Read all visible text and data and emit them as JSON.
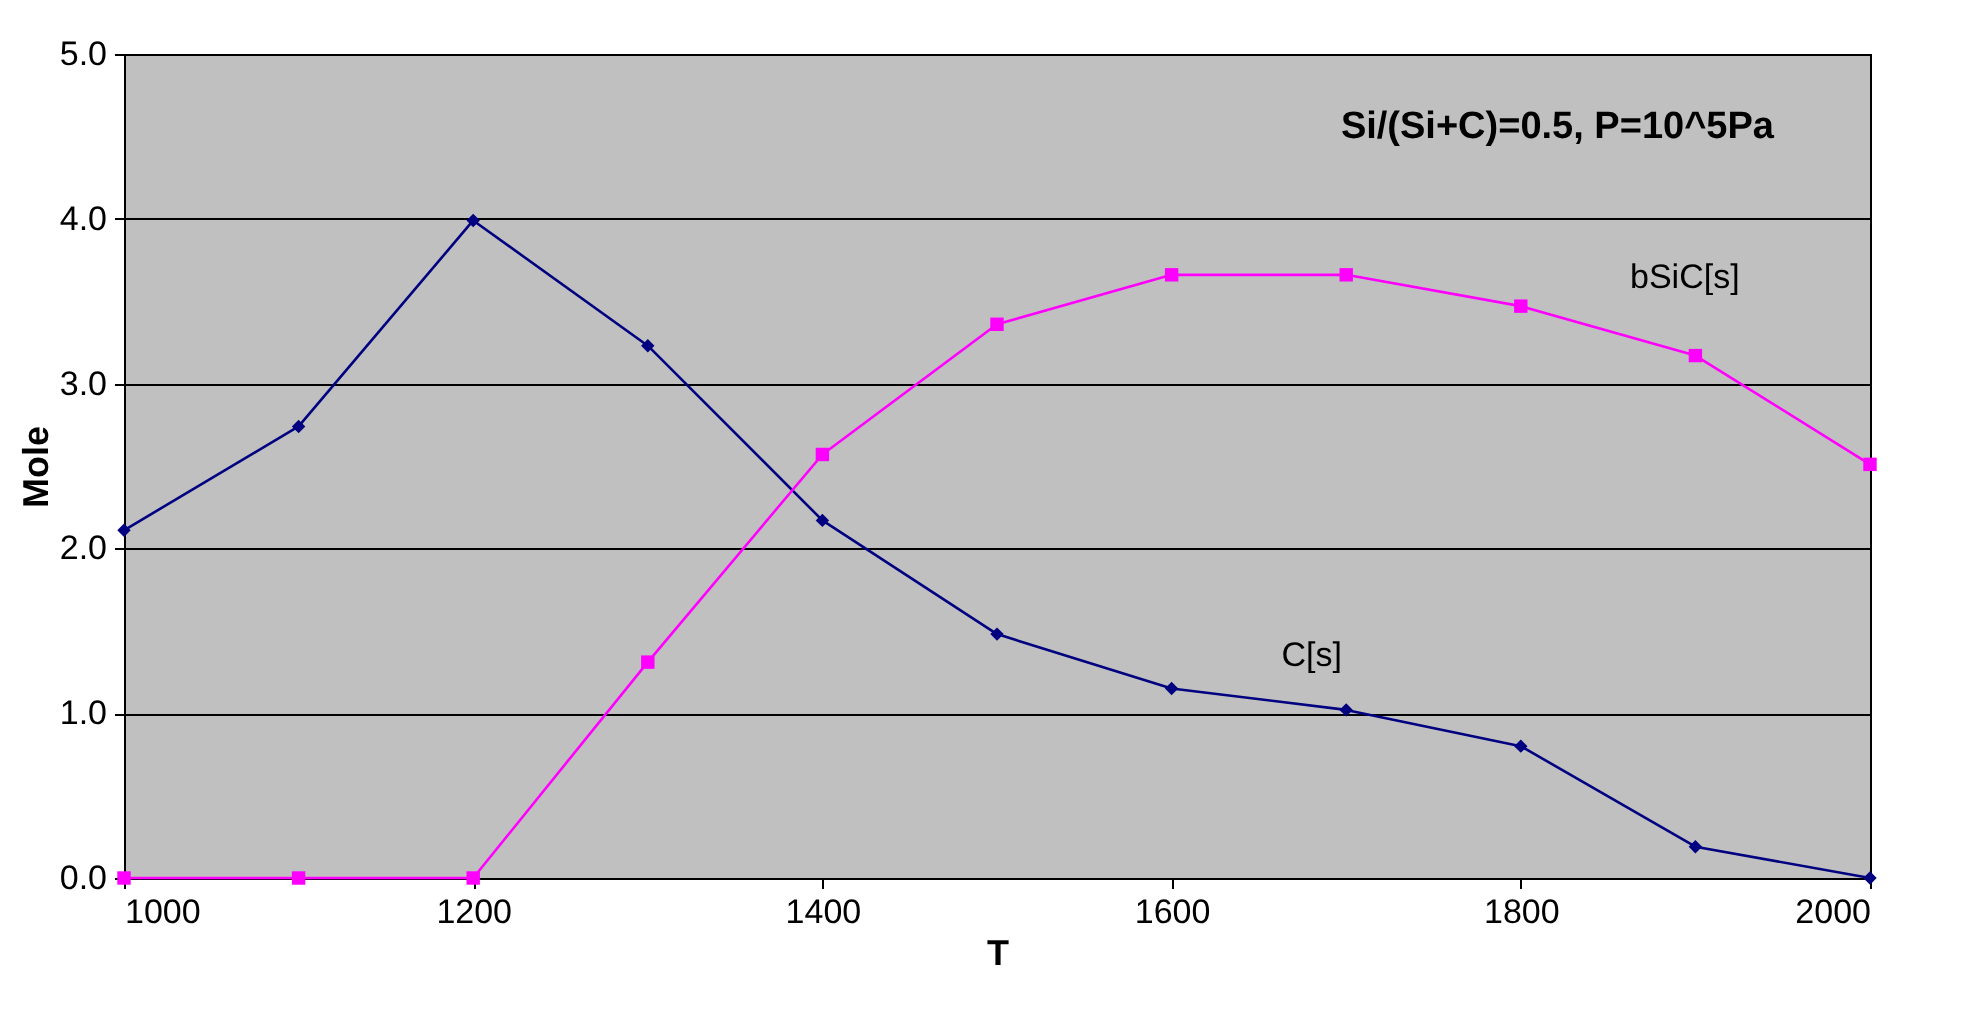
{
  "chart_data": {
    "type": "line",
    "xlabel": "T",
    "ylabel": "Mole",
    "annotations": [
      "Si/(Si+C)=0.5, P=10^5Pa"
    ],
    "x": [
      1000,
      1100,
      1200,
      1300,
      1400,
      1500,
      1600,
      1700,
      1800,
      1900,
      2000
    ],
    "series": [
      {
        "name": "C[s]",
        "color": "#000080",
        "marker": "diamond",
        "values": [
          2.11,
          2.74,
          3.99,
          3.23,
          2.17,
          1.48,
          1.15,
          1.02,
          0.8,
          0.19,
          0
        ]
      },
      {
        "name": "bSiC[s]",
        "color": "#ff00ff",
        "marker": "square",
        "values": [
          0,
          0,
          0,
          1.31,
          2.57,
          3.36,
          3.66,
          3.66,
          3.47,
          3.17,
          2.51
        ]
      }
    ],
    "xlim": [
      1000,
      2000
    ],
    "xticks": [
      1000,
      1200,
      1400,
      1600,
      1800,
      2000
    ],
    "ylim": [
      0,
      5
    ],
    "yticks": [
      {
        "value": 0,
        "label": "0.0"
      },
      {
        "value": 1,
        "label": "1.0"
      },
      {
        "value": 2,
        "label": "2.0"
      },
      {
        "value": 3,
        "label": "3.0"
      },
      {
        "value": 4,
        "label": "4.0"
      },
      {
        "value": 5,
        "label": "5.0"
      }
    ],
    "grid": "y",
    "legend": false
  }
}
